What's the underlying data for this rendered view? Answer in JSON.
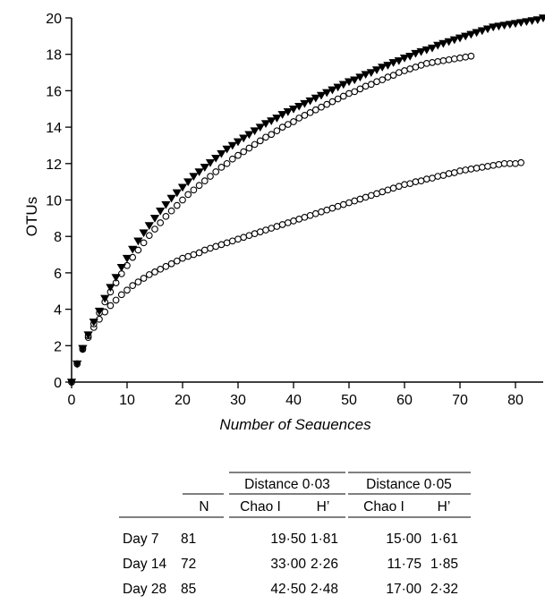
{
  "chart_data": {
    "type": "scatter",
    "xlabel": "Number of Sequences",
    "ylabel": "OTUs",
    "xlim": [
      0,
      85
    ],
    "ylim": [
      0,
      20
    ],
    "xticks": [
      "0",
      "10",
      "20",
      "30",
      "40",
      "50",
      "60",
      "70",
      "80"
    ],
    "yticks": [
      "0",
      "2",
      "4",
      "6",
      "8",
      "10",
      "12",
      "14",
      "16",
      "18",
      "20"
    ],
    "grid": false,
    "legend": "none",
    "series": [
      {
        "marker": "filled-triangle-down",
        "color": "#000000",
        "x": [
          0,
          1,
          2,
          3,
          4,
          5,
          6,
          7,
          8,
          9,
          10,
          11,
          12,
          13,
          14,
          15,
          16,
          17,
          18,
          19,
          20,
          21,
          22,
          23,
          24,
          25,
          26,
          27,
          28,
          29,
          30,
          31,
          32,
          33,
          34,
          35,
          36,
          37,
          38,
          39,
          40,
          41,
          42,
          43,
          44,
          45,
          46,
          47,
          48,
          49,
          50,
          51,
          52,
          53,
          54,
          55,
          56,
          57,
          58,
          59,
          60,
          61,
          62,
          63,
          64,
          65,
          66,
          67,
          68,
          69,
          70,
          71,
          72,
          73,
          74,
          75,
          76,
          77,
          78,
          79,
          80,
          81,
          82,
          83,
          84,
          85
        ],
        "y": [
          0,
          1.0,
          1.85,
          2.6,
          3.3,
          3.9,
          4.6,
          5.2,
          5.75,
          6.3,
          6.8,
          7.3,
          7.75,
          8.2,
          8.6,
          9.0,
          9.4,
          9.75,
          10.1,
          10.4,
          10.7,
          11.0,
          11.3,
          11.55,
          11.8,
          12.05,
          12.3,
          12.55,
          12.8,
          13.0,
          13.2,
          13.4,
          13.6,
          13.8,
          14.0,
          14.2,
          14.35,
          14.5,
          14.7,
          14.85,
          15.0,
          15.15,
          15.3,
          15.45,
          15.6,
          15.75,
          15.9,
          16.05,
          16.2,
          16.35,
          16.5,
          16.6,
          16.75,
          16.9,
          17.0,
          17.15,
          17.3,
          17.4,
          17.55,
          17.65,
          17.8,
          17.9,
          18.05,
          18.15,
          18.25,
          18.35,
          18.5,
          18.6,
          18.7,
          18.8,
          18.9,
          19.0,
          19.1,
          19.2,
          19.3,
          19.4,
          19.5,
          19.55,
          19.6,
          19.65,
          19.7,
          19.75,
          19.8,
          19.85,
          19.9,
          20.0
        ]
      },
      {
        "marker": "open-circle",
        "color": "#000000",
        "x": [
          0,
          1,
          2,
          3,
          4,
          5,
          6,
          7,
          8,
          9,
          10,
          11,
          12,
          13,
          14,
          15,
          16,
          17,
          18,
          19,
          20,
          21,
          22,
          23,
          24,
          25,
          26,
          27,
          28,
          29,
          30,
          31,
          32,
          33,
          34,
          35,
          36,
          37,
          38,
          39,
          40,
          41,
          42,
          43,
          44,
          45,
          46,
          47,
          48,
          49,
          50,
          51,
          52,
          53,
          54,
          55,
          56,
          57,
          58,
          59,
          60,
          61,
          62,
          63,
          64,
          65,
          66,
          67,
          68,
          69,
          70,
          71,
          72
        ],
        "y": [
          0,
          1.0,
          1.85,
          2.55,
          3.2,
          3.8,
          4.4,
          4.95,
          5.45,
          5.95,
          6.4,
          6.85,
          7.25,
          7.65,
          8.05,
          8.4,
          8.75,
          9.1,
          9.4,
          9.7,
          10.0,
          10.3,
          10.55,
          10.8,
          11.05,
          11.3,
          11.55,
          11.8,
          12.0,
          12.25,
          12.45,
          12.65,
          12.85,
          13.05,
          13.25,
          13.45,
          13.6,
          13.8,
          14.0,
          14.15,
          14.3,
          14.5,
          14.65,
          14.8,
          14.95,
          15.1,
          15.25,
          15.4,
          15.55,
          15.7,
          15.85,
          15.95,
          16.1,
          16.25,
          16.35,
          16.5,
          16.6,
          16.75,
          16.85,
          17.0,
          17.1,
          17.2,
          17.3,
          17.4,
          17.5,
          17.55,
          17.6,
          17.65,
          17.7,
          17.75,
          17.8,
          17.85,
          17.9
        ]
      },
      {
        "marker": "open-circle",
        "color": "#000000",
        "x": [
          0,
          1,
          2,
          3,
          4,
          5,
          6,
          7,
          8,
          9,
          10,
          11,
          12,
          13,
          14,
          15,
          16,
          17,
          18,
          19,
          20,
          21,
          22,
          23,
          24,
          25,
          26,
          27,
          28,
          29,
          30,
          31,
          32,
          33,
          34,
          35,
          36,
          37,
          38,
          39,
          40,
          41,
          42,
          43,
          44,
          45,
          46,
          47,
          48,
          49,
          50,
          51,
          52,
          53,
          54,
          55,
          56,
          57,
          58,
          59,
          60,
          61,
          62,
          63,
          64,
          65,
          66,
          67,
          68,
          69,
          70,
          71,
          72,
          73,
          74,
          75,
          76,
          77,
          78,
          79,
          80,
          81
        ],
        "y": [
          0,
          1.0,
          1.8,
          2.45,
          3.0,
          3.45,
          3.85,
          4.2,
          4.5,
          4.8,
          5.05,
          5.3,
          5.5,
          5.7,
          5.9,
          6.05,
          6.2,
          6.35,
          6.5,
          6.65,
          6.8,
          6.9,
          7.0,
          7.1,
          7.25,
          7.35,
          7.45,
          7.55,
          7.65,
          7.75,
          7.85,
          7.95,
          8.05,
          8.15,
          8.25,
          8.35,
          8.45,
          8.55,
          8.65,
          8.75,
          8.85,
          8.95,
          9.05,
          9.15,
          9.25,
          9.35,
          9.45,
          9.55,
          9.65,
          9.75,
          9.85,
          9.95,
          10.05,
          10.15,
          10.25,
          10.35,
          10.45,
          10.55,
          10.65,
          10.75,
          10.85,
          10.9,
          11.0,
          11.05,
          11.15,
          11.2,
          11.3,
          11.35,
          11.45,
          11.5,
          11.6,
          11.65,
          11.7,
          11.75,
          11.8,
          11.85,
          11.9,
          11.95,
          12.0,
          12.0,
          12.0,
          12.05
        ]
      }
    ]
  },
  "table": {
    "group_headers": [
      "Distance 0·03",
      "Distance 0·05"
    ],
    "columns": [
      "N",
      "Chao I",
      "H’",
      "Chao I",
      "H’"
    ],
    "rows": [
      {
        "label": "Day 7",
        "n": "81",
        "chao1_03": "19·50",
        "h_03": "1·81",
        "chao1_05": "15·00",
        "h_05": "1·61"
      },
      {
        "label": "Day 14",
        "n": "72",
        "chao1_03": "33·00",
        "h_03": "2·26",
        "chao1_05": "11·75",
        "h_05": "1·85"
      },
      {
        "label": "Day 28",
        "n": "85",
        "chao1_03": "42·50",
        "h_03": "2·48",
        "chao1_05": "17·00",
        "h_05": "2·32"
      }
    ]
  }
}
